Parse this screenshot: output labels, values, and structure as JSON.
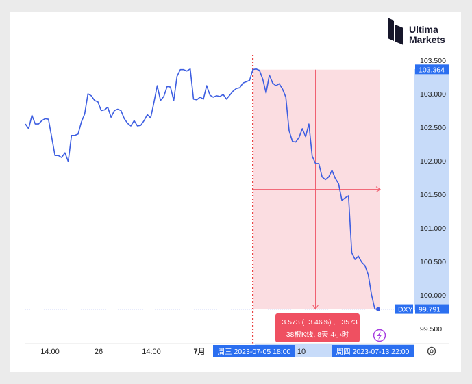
{
  "brand": {
    "name_line1": "Ultima",
    "name_line2": "Markets"
  },
  "chart_data": {
    "type": "line",
    "symbol": "DXY",
    "ylim": [
      99.3,
      103.62
    ],
    "y_ticks": [
      "103.500",
      "103.000",
      "102.500",
      "102.000",
      "101.500",
      "101.000",
      "100.500",
      "100.000",
      "99.500"
    ],
    "x_ticks": [
      "14:00",
      "26",
      "14:00",
      "7月",
      "10"
    ],
    "series": [
      {
        "values": [
          102.55,
          102.48,
          102.68,
          102.55,
          102.55,
          102.6,
          102.63,
          102.62,
          102.35,
          102.08,
          102.08,
          102.05,
          102.12,
          101.99,
          102.38,
          102.38,
          102.4,
          102.58,
          102.7,
          103.0,
          102.97,
          102.9,
          102.88,
          102.75,
          102.76,
          102.8,
          102.65,
          102.75,
          102.77,
          102.75,
          102.63,
          102.56,
          102.52,
          102.6,
          102.52,
          102.53,
          102.6,
          102.69,
          102.64,
          102.87,
          103.12,
          102.9,
          102.96,
          103.11,
          103.1,
          102.9,
          103.26,
          103.36,
          103.36,
          103.34,
          103.37,
          102.92,
          102.91,
          102.95,
          102.92,
          103.12,
          102.98,
          102.95,
          102.97,
          102.96,
          102.99,
          102.92,
          102.98,
          103.04,
          103.08,
          103.09,
          103.16,
          103.18,
          103.2,
          103.36,
          103.37,
          103.35,
          103.22,
          103.01,
          103.28,
          103.16,
          103.12,
          103.15,
          103.07,
          102.95,
          102.45,
          102.29,
          102.28,
          102.35,
          102.48,
          102.36,
          102.55,
          102.07,
          101.96,
          101.96,
          101.76,
          101.72,
          101.76,
          101.86,
          101.74,
          101.66,
          101.41,
          101.45,
          101.48,
          100.63,
          100.53,
          100.58,
          100.49,
          100.44,
          100.3,
          100.0,
          99.79,
          99.79
        ]
      }
    ],
    "last_price": "103.364",
    "current_price": "99.791",
    "measure": {
      "change_text": "−3.573 (−3.46%) , −3573",
      "bars_text": "38根K线, 8天 4小时",
      "start_label": "周三 2023-07-05   18:00",
      "end_label": "周四 2023-07-13   22:00"
    }
  },
  "colors": {
    "line": "#3d5ee1",
    "measure_fill": "#fbdde1",
    "measure_line": "#f05a6b",
    "axis_highlight": "#c7dbf9",
    "label_blue": "#2b6ff0",
    "tooltip": "#ef5061"
  },
  "icons": {
    "bolt": "lightning-icon",
    "settings": "gear-icon"
  }
}
